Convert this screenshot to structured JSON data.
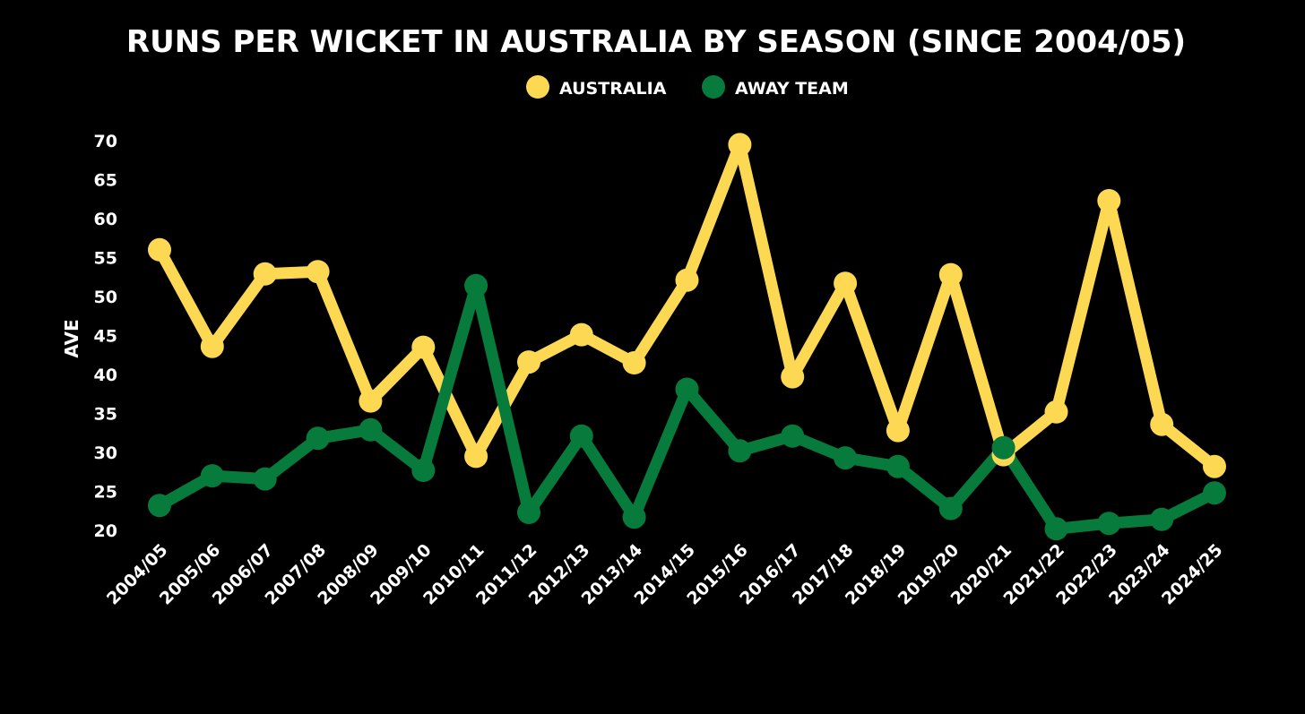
{
  "chart_data": {
    "type": "line",
    "title": "RUNS PER WICKET IN AUSTRALIA BY SEASON (SINCE 2004/05)",
    "xlabel": "",
    "ylabel": "AVE",
    "ylim": [
      20,
      70
    ],
    "yticks": [
      20,
      25,
      30,
      35,
      40,
      45,
      50,
      55,
      60,
      65,
      70
    ],
    "grid": false,
    "legend_position": "top-center",
    "categories": [
      "2004/05",
      "2005/06",
      "2006/07",
      "2007/08",
      "2008/09",
      "2009/10",
      "2010/11",
      "2011/12",
      "2012/13",
      "2013/14",
      "2014/15",
      "2015/16",
      "2016/17",
      "2017/18",
      "2018/19",
      "2019/20",
      "2020/21",
      "2021/22",
      "2022/23",
      "2023/24",
      "2024/25"
    ],
    "series": [
      {
        "name": "AUSTRALIA",
        "color": "#fdd853",
        "values": [
          56.0,
          43.6,
          52.9,
          53.2,
          36.6,
          43.5,
          29.5,
          41.6,
          45.1,
          41.5,
          52.1,
          69.5,
          39.7,
          51.7,
          32.8,
          52.8,
          29.7,
          35.2,
          62.3,
          33.6,
          28.2
        ]
      },
      {
        "name": "AWAY TEAM",
        "color": "#067b3b",
        "values": [
          23.2,
          27.0,
          26.6,
          31.8,
          32.9,
          27.7,
          51.4,
          22.3,
          32.1,
          21.7,
          38.1,
          30.2,
          32.1,
          29.3,
          28.2,
          22.8,
          30.6,
          20.2,
          20.9,
          21.4,
          24.8
        ]
      }
    ]
  }
}
